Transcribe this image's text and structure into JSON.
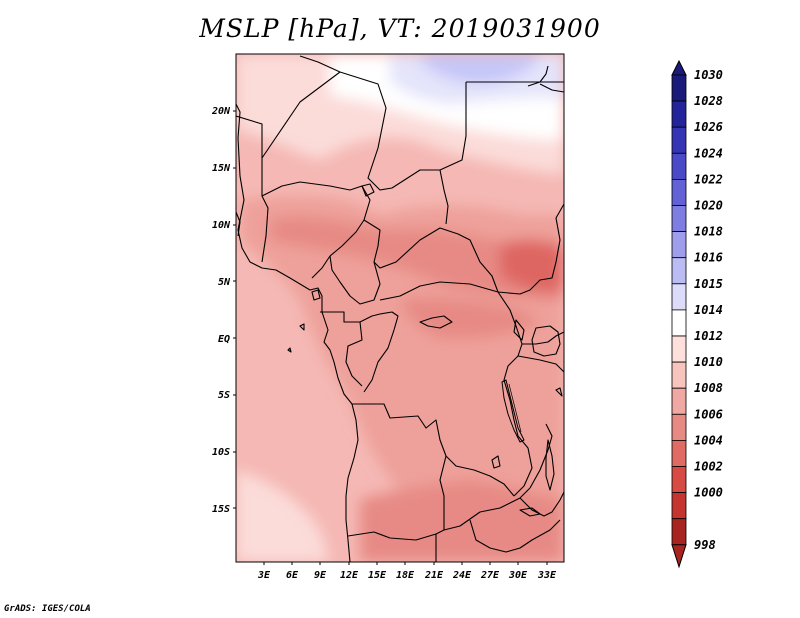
{
  "title": "MSLP [hPa],  VT: 2019031900",
  "credit": "GrADS: IGES/COLA",
  "latitude_labels": [
    "20N",
    "15N",
    "10N",
    "5N",
    "EQ",
    "5S",
    "10S",
    "15S"
  ],
  "longitude_labels": [
    "3E",
    "6E",
    "9E",
    "12E",
    "15E",
    "18E",
    "21E",
    "24E",
    "27E",
    "30E",
    "33E"
  ],
  "colorbar": {
    "labels": [
      "1030",
      "1028",
      "1026",
      "1024",
      "1022",
      "1020",
      "1018",
      "1016",
      "1015",
      "1014",
      "1012",
      "1010",
      "1008",
      "1006",
      "1004",
      "1002",
      "1000",
      "998"
    ],
    "colors": [
      "#1a1a7a",
      "#24249a",
      "#3434b4",
      "#4a4ac8",
      "#6262d6",
      "#7e7ee2",
      "#9e9eec",
      "#bcbcf4",
      "#dcdcfa",
      "#ffffff",
      "#fde0dc",
      "#f8c4be",
      "#f0a8a2",
      "#e88a84",
      "#e06a64",
      "#d84a44",
      "#c63430",
      "#a82420"
    ],
    "top_cap_color": "#1a1a7a",
    "bottom_cap_color": "#a82420"
  },
  "field_colors": {
    "hpa_1016": "#c6c6f8",
    "hpa_1015": "#e4e4fb",
    "hpa_1014": "#ffffff",
    "hpa_1012": "#fbdcd9",
    "hpa_1010": "#f5b8b4",
    "hpa_1008": "#eea09a",
    "hpa_1006": "#e78a85",
    "hpa_1004": "#de6662"
  }
}
